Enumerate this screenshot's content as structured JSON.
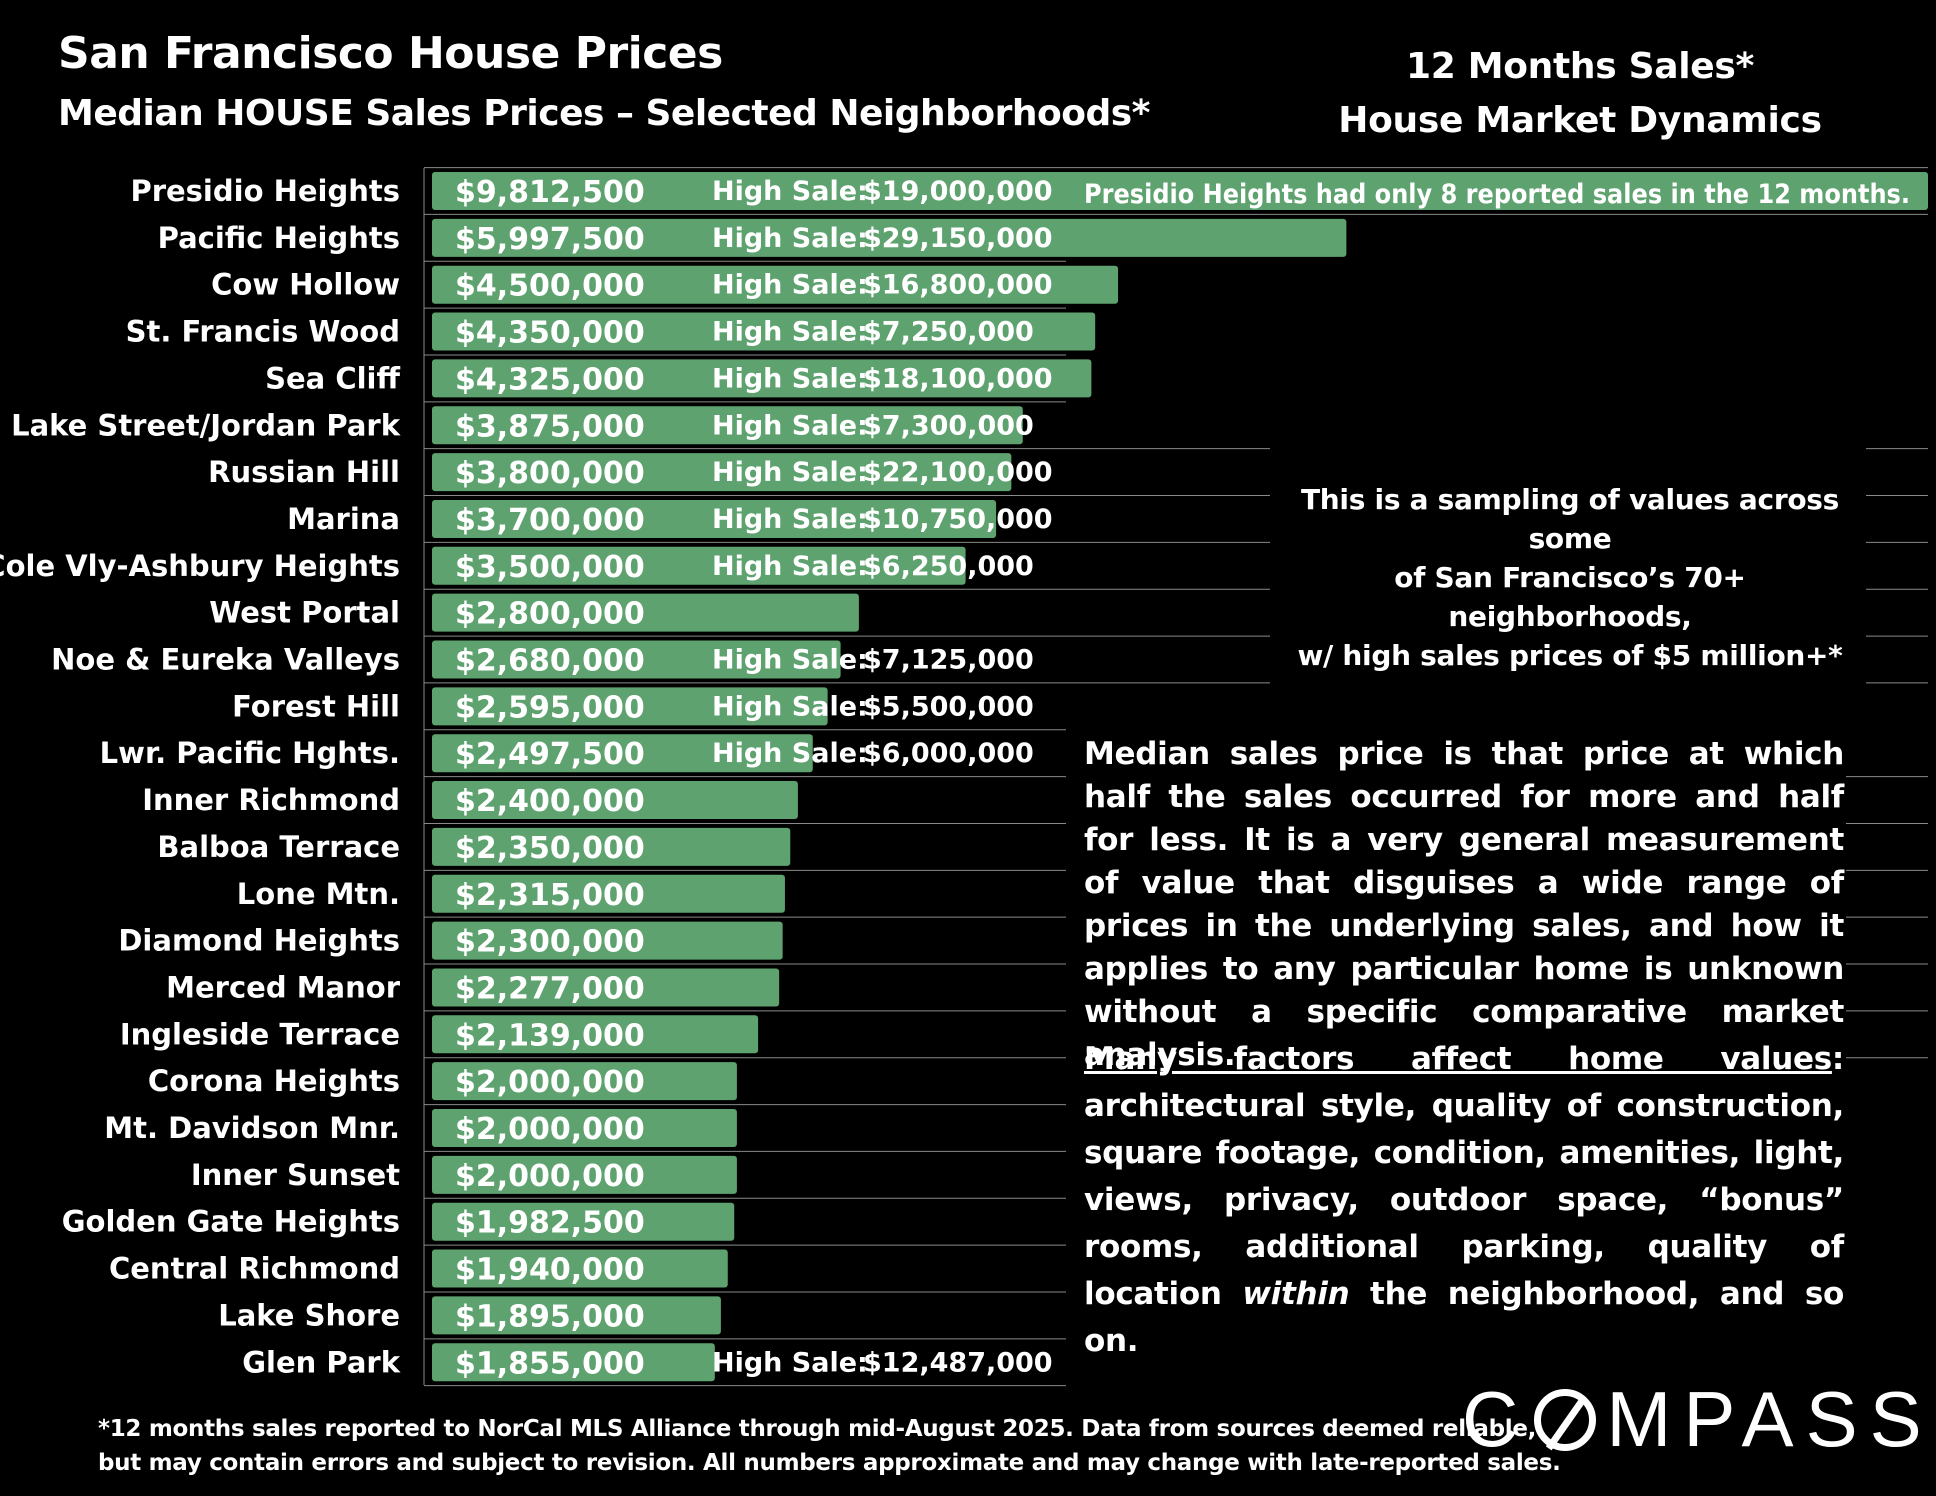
{
  "header": {
    "title": "San Francisco House Prices",
    "subtitle": "Median HOUSE Sales Prices – Selected Neighborhoods*",
    "right_line1": "12 Months Sales*",
    "right_line2": "House Market Dynamics"
  },
  "notes": {
    "presidio_note": "Presidio Heights had only 8 reported sales in the 12 months.",
    "sampling_line1": "This is a sampling of values across some",
    "sampling_line2": "of San Francisco’s 70+ neighborhoods,",
    "sampling_line3": "w/ high sales prices of $5 million+*",
    "definition": "Median sales price is that price at which half the sales occurred for more and half for less. It is a very general measurement of value that disguises a wide range of prices in the underlying sales, and how it applies to any particular home is unknown without a specific comparative market analysis.",
    "factors_heading": "Many factors affect home values",
    "factors_before_within": ": architectural style, quality of construction, square footage, condition, amenities, light, views, privacy, outdoor space, “bonus” rooms, additional parking, quality of location ",
    "factors_within": "within",
    "factors_after_within": " the neighborhood, and so on."
  },
  "footnote": {
    "line1": "*12 months sales reported to NorCal MLS Alliance through mid-August 2025. Data from sources deemed reliable,",
    "line2": "but may contain errors and subject to revision. All numbers approximate and may change with late-reported sales."
  },
  "logo": {
    "before": "C",
    "after": "MPASS"
  },
  "colors": {
    "background": "#000000",
    "bar": "#5ea26f",
    "text": "#ffffff",
    "grid": "#8a8a8a"
  },
  "chart_data": {
    "type": "bar",
    "orientation": "horizontal",
    "high_sale_label": "High Sale:",
    "categories": [
      "Presidio Heights",
      "Pacific Heights",
      "Cow Hollow",
      "St. Francis Wood",
      "Sea Cliff",
      "Lake Street/Jordan Park",
      "Russian Hill",
      "Marina",
      "Cole Vly-Ashbury Heights",
      "West Portal",
      "Noe & Eureka Valleys",
      "Forest Hill",
      "Lwr. Pacific Hghts.",
      "Inner Richmond",
      "Balboa Terrace",
      "Lone Mtn.",
      "Diamond Heights",
      "Merced Manor",
      "Ingleside Terrace",
      "Corona Heights",
      "Mt. Davidson Mnr.",
      "Inner Sunset",
      "Golden Gate Heights",
      "Central Richmond",
      "Lake Shore",
      "Glen Park"
    ],
    "values": [
      9812500,
      5997500,
      4500000,
      4350000,
      4325000,
      3875000,
      3800000,
      3700000,
      3500000,
      2800000,
      2680000,
      2595000,
      2497500,
      2400000,
      2350000,
      2315000,
      2300000,
      2277000,
      2139000,
      2000000,
      2000000,
      2000000,
      1982500,
      1940000,
      1895000,
      1855000
    ],
    "value_labels": [
      "$9,812,500",
      "$5,997,500",
      "$4,500,000",
      "$4,350,000",
      "$4,325,000",
      "$3,875,000",
      "$3,800,000",
      "$3,700,000",
      "$3,500,000",
      "$2,800,000",
      "$2,680,000",
      "$2,595,000",
      "$2,497,500",
      "$2,400,000",
      "$2,350,000",
      "$2,315,000",
      "$2,300,000",
      "$2,277,000",
      "$2,139,000",
      "$2,000,000",
      "$2,000,000",
      "$2,000,000",
      "$1,982,500",
      "$1,940,000",
      "$1,895,000",
      "$1,855,000"
    ],
    "high_sales": [
      "$19,000,000",
      "$29,150,000",
      "$16,800,000",
      "$7,250,000",
      "$18,100,000",
      "$7,300,000",
      "$22,100,000",
      "$10,750,000",
      "$6,250,000",
      "",
      "$7,125,000",
      "$5,500,000",
      "$6,000,000",
      "",
      "",
      "",
      "",
      "",
      "",
      "",
      "",
      "",
      "",
      "",
      "",
      "$12,487,000"
    ],
    "title": "Median HOUSE Sales Prices – Selected Neighborhoods*",
    "xlabel": "",
    "ylabel": "",
    "xlim": [
      0,
      9812500
    ]
  }
}
